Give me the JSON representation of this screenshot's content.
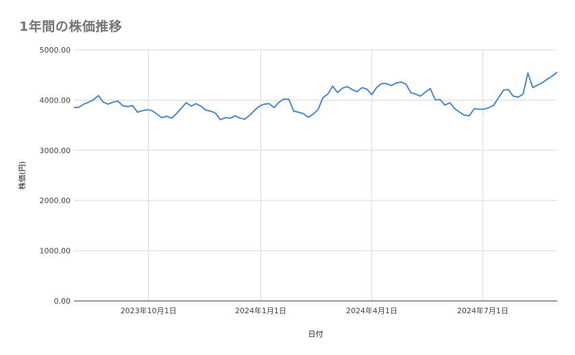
{
  "chart_data": {
    "type": "line",
    "title": "1年間の株価推移",
    "xlabel": "日付",
    "ylabel": "株価(円)",
    "ylim": [
      0,
      5000
    ],
    "yticks": [
      {
        "value": 0,
        "label": "0.00"
      },
      {
        "value": 1000,
        "label": "1000.00"
      },
      {
        "value": 2000,
        "label": "2000.00"
      },
      {
        "value": 3000,
        "label": "3000.00"
      },
      {
        "value": 4000,
        "label": "4000.00"
      },
      {
        "value": 5000,
        "label": "5000.00"
      }
    ],
    "xlim": [
      "2023-08-01",
      "2024-08-31"
    ],
    "xticks": [
      {
        "date": "2023-10-01",
        "label": "2023年10月1日"
      },
      {
        "date": "2024-01-01",
        "label": "2024年1月1日"
      },
      {
        "date": "2024-04-01",
        "label": "2024年4月1日"
      },
      {
        "date": "2024-07-01",
        "label": "2024年7月1日"
      }
    ],
    "grid": true,
    "line_color": "#4a86d0",
    "series": [
      {
        "x": [
          "2023-08-01",
          "2023-08-05",
          "2023-08-09",
          "2023-08-13",
          "2023-08-17",
          "2023-08-21",
          "2023-08-25",
          "2023-08-29",
          "2023-09-02",
          "2023-09-06",
          "2023-09-10",
          "2023-09-14",
          "2023-09-18",
          "2023-09-22",
          "2023-09-26",
          "2023-09-30",
          "2023-10-04",
          "2023-10-08",
          "2023-10-12",
          "2023-10-16",
          "2023-10-20",
          "2023-10-24",
          "2023-10-28",
          "2023-11-01",
          "2023-11-05",
          "2023-11-09",
          "2023-11-13",
          "2023-11-17",
          "2023-11-21",
          "2023-11-25",
          "2023-11-29",
          "2023-12-03",
          "2023-12-07",
          "2023-12-11",
          "2023-12-15",
          "2023-12-19",
          "2023-12-23",
          "2023-12-27",
          "2023-12-31",
          "2024-01-04",
          "2024-01-08",
          "2024-01-12",
          "2024-01-16",
          "2024-01-20",
          "2024-01-24",
          "2024-01-28",
          "2024-02-01",
          "2024-02-05",
          "2024-02-09",
          "2024-02-13",
          "2024-02-17",
          "2024-02-21",
          "2024-02-25",
          "2024-02-29",
          "2024-03-04",
          "2024-03-08",
          "2024-03-12",
          "2024-03-16",
          "2024-03-20",
          "2024-03-24",
          "2024-03-28",
          "2024-04-01",
          "2024-04-05",
          "2024-04-09",
          "2024-04-13",
          "2024-04-17",
          "2024-04-21",
          "2024-04-25",
          "2024-04-29",
          "2024-05-03",
          "2024-05-07",
          "2024-05-11",
          "2024-05-15",
          "2024-05-19",
          "2024-05-23",
          "2024-05-27",
          "2024-05-31",
          "2024-06-04",
          "2024-06-08",
          "2024-06-12",
          "2024-06-16",
          "2024-06-20",
          "2024-06-24",
          "2024-06-28",
          "2024-07-02",
          "2024-07-06",
          "2024-07-10",
          "2024-07-14",
          "2024-07-18",
          "2024-07-22",
          "2024-07-26",
          "2024-07-30",
          "2024-08-03",
          "2024-08-07",
          "2024-08-11",
          "2024-08-15",
          "2024-08-19",
          "2024-08-23",
          "2024-08-27",
          "2024-08-31"
        ],
        "values": [
          3850,
          3860,
          3920,
          3960,
          4010,
          4090,
          3960,
          3920,
          3960,
          3980,
          3890,
          3870,
          3890,
          3760,
          3790,
          3810,
          3790,
          3720,
          3650,
          3680,
          3640,
          3730,
          3840,
          3950,
          3880,
          3930,
          3880,
          3800,
          3780,
          3740,
          3610,
          3650,
          3640,
          3690,
          3640,
          3620,
          3700,
          3800,
          3880,
          3920,
          3930,
          3850,
          3960,
          4020,
          4020,
          3780,
          3760,
          3730,
          3660,
          3720,
          3810,
          4050,
          4120,
          4280,
          4150,
          4240,
          4270,
          4210,
          4170,
          4250,
          4220,
          4110,
          4250,
          4330,
          4330,
          4290,
          4340,
          4360,
          4320,
          4150,
          4120,
          4080,
          4160,
          4230,
          4010,
          4010,
          3900,
          3950,
          3830,
          3760,
          3700,
          3690,
          3830,
          3820,
          3820,
          3850,
          3900,
          4050,
          4200,
          4210,
          4080,
          4060,
          4120,
          4540,
          4250,
          4300,
          4350,
          4420,
          4480,
          4560
        ]
      }
    ]
  }
}
